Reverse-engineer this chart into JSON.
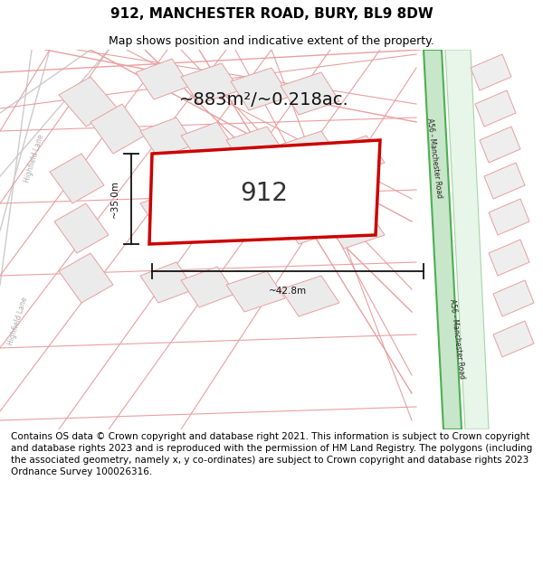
{
  "title": "912, MANCHESTER ROAD, BURY, BL9 8DW",
  "subtitle": "Map shows position and indicative extent of the property.",
  "area_text": "~883m²/~0.218ac.",
  "plot_label": "912",
  "dim_width": "~42.8m",
  "dim_height": "~35.0m",
  "footnote": "Contains OS data © Crown copyright and database right 2021. This information is subject to Crown copyright and database rights 2023 and is reproduced with the permission of HM Land Registry. The polygons (including the associated geometry, namely x, y co-ordinates) are subject to Crown copyright and database rights 2023 Ordnance Survey 100026316.",
  "bg_color": "#ffffff",
  "plot_color": "#cc0000",
  "green_fill": "#c8e6c9",
  "green_edge": "#4caf50",
  "green2_fill": "#dcedc8",
  "bldg_fill": "#ebebeb",
  "bldg_edge": "#e8a0a0",
  "road_color": "#e8a0a0",
  "lane_color": "#bbbbbb",
  "dim_color": "#111111",
  "title_fs": 11,
  "subtitle_fs": 9,
  "area_fs": 14,
  "label_fs": 20,
  "dim_fs": 7.5,
  "road_lbl_fs": 5.5,
  "lane_fs": 5.5,
  "foot_fs": 7.5
}
